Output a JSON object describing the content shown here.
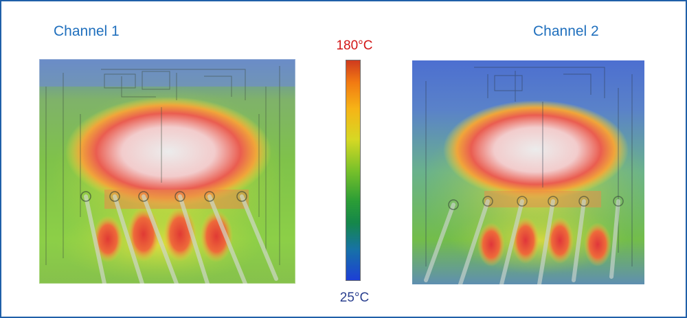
{
  "channels": [
    {
      "label": "Channel 1"
    },
    {
      "label": "Channel 2"
    }
  ],
  "scale": {
    "max_label": "180°C",
    "min_label": "25°C",
    "max_color": "#d21414",
    "min_color": "#2a3f8f"
  },
  "colors": {
    "border": "#1f5fa8",
    "label": "#1f6fbd",
    "hot": "#e84a3c",
    "warm": "#f2d13a",
    "mid": "#6fbf3a",
    "cool": "#2b5fd0"
  }
}
